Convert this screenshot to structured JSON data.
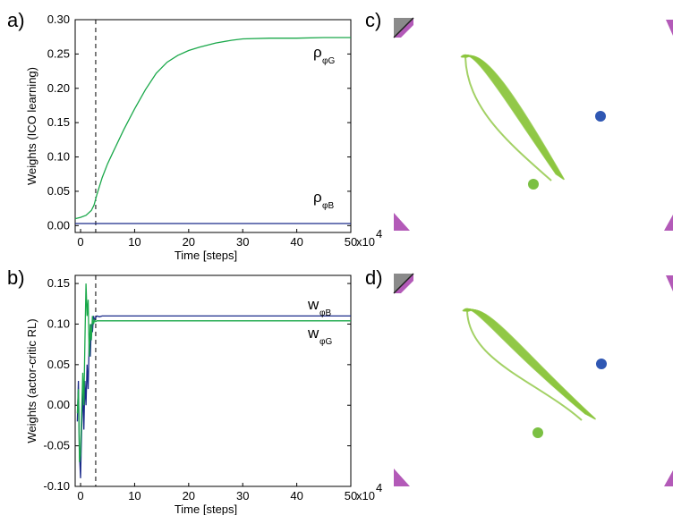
{
  "panel_labels": {
    "a": "a)",
    "b": "b)",
    "c": "c)",
    "d": "d)"
  },
  "chart_data": [
    {
      "type": "line",
      "panel": "a",
      "xlabel": "Time [steps]",
      "ylabel": "Weights (ICO learning)",
      "x_multiplier": "x10",
      "x_multiplier_exp": "4",
      "xlim": [
        -1,
        50
      ],
      "ylim": [
        -0.01,
        0.3
      ],
      "xticks": [
        0,
        10,
        20,
        30,
        40,
        50
      ],
      "yticks": [
        0.0,
        0.05,
        0.1,
        0.15,
        0.2,
        0.25,
        0.3
      ],
      "ytick_labels": [
        "0.00",
        "0.05",
        "0.10",
        "0.15",
        "0.20",
        "0.25",
        "0.30"
      ],
      "vline_x": 2.8,
      "series": [
        {
          "name": "ρ",
          "name_sub": "φG",
          "color": "#1aa84a",
          "x": [
            -1,
            0,
            1,
            2,
            2.5,
            3,
            4,
            5,
            6,
            8,
            10,
            12,
            14,
            16,
            18,
            20,
            22,
            25,
            28,
            30,
            35,
            40,
            45,
            50
          ],
          "y": [
            0.01,
            0.012,
            0.015,
            0.022,
            0.03,
            0.045,
            0.07,
            0.09,
            0.107,
            0.14,
            0.17,
            0.198,
            0.222,
            0.238,
            0.248,
            0.255,
            0.26,
            0.266,
            0.27,
            0.272,
            0.273,
            0.273,
            0.274,
            0.274
          ]
        },
        {
          "name": "ρ",
          "name_sub": "φB",
          "color": "#1a2a8a",
          "x": [
            -1,
            50
          ],
          "y": [
            0.003,
            0.003
          ]
        }
      ]
    },
    {
      "type": "line",
      "panel": "b",
      "xlabel": "Time [steps]",
      "ylabel": "Weights (actor-critic RL)",
      "x_multiplier": "x10",
      "x_multiplier_exp": "4",
      "xlim": [
        -1,
        50
      ],
      "ylim": [
        -0.1,
        0.16
      ],
      "xticks": [
        0,
        10,
        20,
        30,
        40,
        50
      ],
      "yticks": [
        -0.1,
        -0.05,
        0.0,
        0.05,
        0.1,
        0.15
      ],
      "ytick_labels": [
        "-0.10",
        "-0.05",
        "0.00",
        "0.05",
        "0.10",
        "0.15"
      ],
      "vline_x": 2.8,
      "series": [
        {
          "name": "w",
          "name_sub": "φB",
          "color": "#1a2a8a",
          "x": [
            -0.6,
            -0.4,
            -0.2,
            0,
            0.2,
            0.4,
            0.6,
            0.8,
            1.0,
            1.2,
            1.4,
            1.6,
            1.8,
            2.0,
            2.2,
            2.4,
            2.6,
            2.8,
            3.0,
            3.5,
            4,
            50
          ],
          "y": [
            -0.02,
            0.03,
            -0.06,
            -0.09,
            -0.03,
            0.02,
            -0.03,
            0.03,
            0.0,
            0.05,
            0.02,
            0.08,
            0.06,
            0.1,
            0.09,
            0.11,
            0.105,
            0.108,
            0.11,
            0.109,
            0.11,
            0.11
          ]
        },
        {
          "name": "w",
          "name_sub": "φG",
          "color": "#1aa84a",
          "x": [
            -0.6,
            -0.4,
            -0.2,
            0,
            0.2,
            0.4,
            0.6,
            0.8,
            1.0,
            1.2,
            1.4,
            1.6,
            1.8,
            2.0,
            2.2,
            2.4,
            2.6,
            2.8,
            3.0,
            3.5,
            4,
            50
          ],
          "y": [
            -0.01,
            0.02,
            -0.07,
            -0.06,
            -0.01,
            0.04,
            0.0,
            0.08,
            0.15,
            0.11,
            0.13,
            0.06,
            0.1,
            0.08,
            0.11,
            0.1,
            0.105,
            0.103,
            0.104,
            0.104,
            0.104,
            0.104
          ]
        }
      ]
    }
  ],
  "colors": {
    "goal": "#8cc63f",
    "goal_dot": "#7bc043",
    "blue_dot": "#2f57b3",
    "corner_purple": "#b35ab8",
    "corner_gray": "#8a8a8a"
  }
}
